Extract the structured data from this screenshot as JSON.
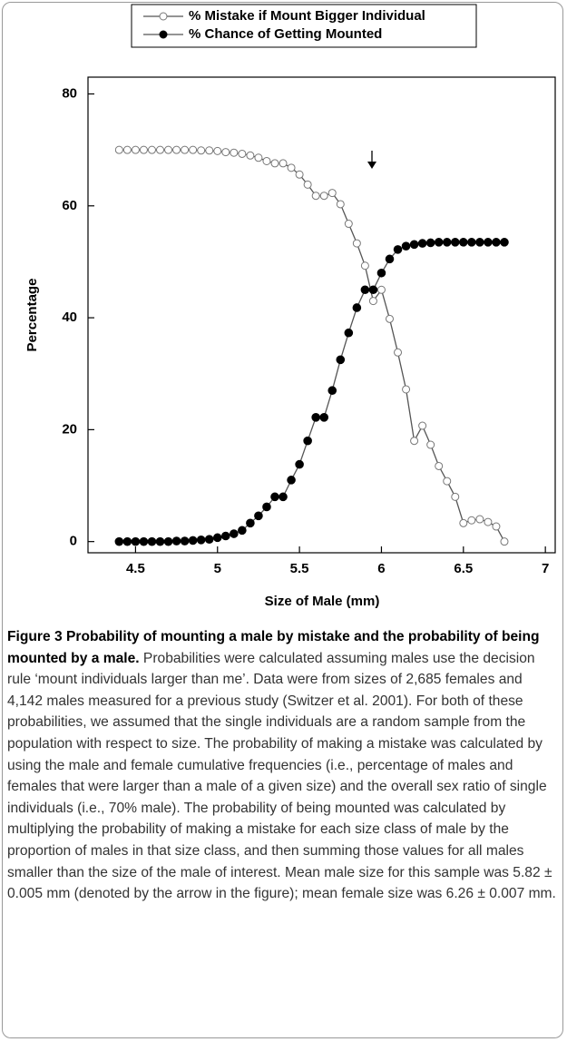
{
  "chart_data": {
    "type": "line",
    "xlabel": "Size of Male (mm)",
    "ylabel": "Percentage",
    "x": [
      4.4,
      4.45,
      4.5,
      4.55,
      4.6,
      4.65,
      4.7,
      4.75,
      4.8,
      4.85,
      4.9,
      4.95,
      5.0,
      5.05,
      5.1,
      5.15,
      5.2,
      5.25,
      5.3,
      5.35,
      5.4,
      5.45,
      5.5,
      5.55,
      5.6,
      5.65,
      5.7,
      5.75,
      5.8,
      5.85,
      5.9,
      5.95,
      6.0,
      6.05,
      6.1,
      6.15,
      6.2,
      6.25,
      6.3,
      6.35,
      6.4,
      6.45,
      6.5,
      6.55,
      6.6,
      6.65,
      6.7,
      6.75
    ],
    "series": [
      {
        "name": "% Mistake if Mount Bigger Individual",
        "color": "#555555",
        "marker": "open",
        "values": [
          70,
          70,
          70,
          70,
          70,
          70,
          70,
          70,
          70,
          70,
          69.9,
          69.9,
          69.8,
          69.6,
          69.5,
          69.3,
          69,
          68.6,
          68,
          67.6,
          67.6,
          66.8,
          65.6,
          63.8,
          61.8,
          61.8,
          62.3,
          60.3,
          56.8,
          53.3,
          49.3,
          43,
          45,
          39.8,
          33.8,
          27.2,
          18,
          20.7,
          17.3,
          13.5,
          10.8,
          8,
          3.3,
          3.8,
          4,
          3.5,
          2.7,
          0
        ]
      },
      {
        "name": "% Chance of Getting Mounted",
        "color": "#555555",
        "marker": "filled",
        "values": [
          0,
          0,
          0,
          0,
          0,
          0,
          0,
          0.1,
          0.1,
          0.2,
          0.3,
          0.4,
          0.7,
          1,
          1.4,
          2,
          3.3,
          4.6,
          6.2,
          8,
          8,
          11,
          13.8,
          18,
          22.2,
          22.2,
          27,
          32.5,
          37.3,
          41.8,
          45,
          45,
          48,
          50.5,
          52.2,
          52.8,
          53.1,
          53.3,
          53.4,
          53.5,
          53.5,
          53.5,
          53.5,
          53.5,
          53.5,
          53.5,
          53.5,
          53.5
        ]
      }
    ],
    "xlim": [
      4.21,
      7.06
    ],
    "xticks": [
      4.5,
      5,
      5.5,
      6,
      6.5,
      7
    ],
    "ylim": [
      -2,
      83
    ],
    "yticks": [
      0,
      20,
      40,
      60,
      80
    ],
    "legend": "top"
  },
  "caption": {
    "title": "Figure 3 Probability of mounting a male by mistake and the probability of being mounted by a male.",
    "text": "Probabilities were calculated assuming males use the decision rule ‘mount individuals larger than me’. Data were from sizes of 2,685 females and 4,142 males measured for a previous study (Switzer et al. 2001). For both of these probabilities, we assumed that the single individuals are a random sample from the population with respect to size. The probability of making a mistake was calculated by using the male and female cumulative frequencies (i.e., percentage of males and females that were larger than a male of a given size) and the overall sex ratio of single individuals (i.e., 70% male). The probability of being mounted was calculated by multiplying the probability of making a mistake for each size class of male by the proportion of males in that size class, and then summing those values for all males smaller than the size of the male of interest. Mean male size for this sample was 5.82 ± 0.005 mm (denoted by the arrow in the figure); mean female size was 6.26 ± 0.007 mm."
  }
}
